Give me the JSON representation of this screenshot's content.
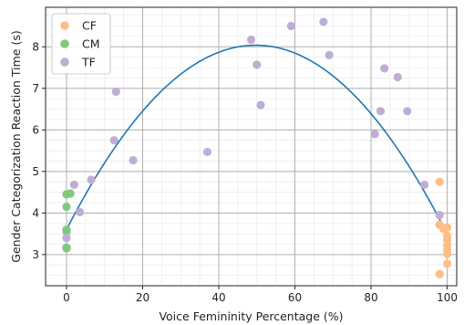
{
  "chart_data": {
    "type": "scatter",
    "title": "",
    "xlabel": "Voice Femininity Percentage (%)",
    "ylabel": "Gender Categorization Reaction Time (s)",
    "xlim": [
      -5.5,
      102.5
    ],
    "ylim": [
      2.25,
      8.95
    ],
    "xticks": [
      0,
      20,
      40,
      60,
      80,
      100
    ],
    "yticks": [
      3,
      4,
      5,
      6,
      7,
      8
    ],
    "grid": true,
    "legend_position": "top-left",
    "series": [
      {
        "name": "CF",
        "color": "#fdbf86",
        "points": [
          {
            "x": 98.0,
            "y": 4.75
          },
          {
            "x": 98.0,
            "y": 3.72
          },
          {
            "x": 99.0,
            "y": 3.62
          },
          {
            "x": 100.0,
            "y": 3.65
          },
          {
            "x": 100.0,
            "y": 3.45
          },
          {
            "x": 100.0,
            "y": 3.35
          },
          {
            "x": 100.0,
            "y": 3.22
          },
          {
            "x": 100.0,
            "y": 3.12
          },
          {
            "x": 100.0,
            "y": 3.02
          },
          {
            "x": 100.0,
            "y": 2.78
          },
          {
            "x": 98.0,
            "y": 2.53
          }
        ]
      },
      {
        "name": "CM",
        "color": "#7fc97f",
        "points": [
          {
            "x": 0.0,
            "y": 4.45
          },
          {
            "x": 1.0,
            "y": 4.47
          },
          {
            "x": 0.0,
            "y": 4.15
          },
          {
            "x": 0.0,
            "y": 3.6
          },
          {
            "x": 0.0,
            "y": 3.55
          },
          {
            "x": 0.0,
            "y": 3.17
          },
          {
            "x": 0.0,
            "y": 3.15
          }
        ]
      },
      {
        "name": "TF",
        "color": "#beaed4",
        "points": [
          {
            "x": 0.0,
            "y": 3.4
          },
          {
            "x": 2.0,
            "y": 4.68
          },
          {
            "x": 3.5,
            "y": 4.02
          },
          {
            "x": 6.5,
            "y": 4.8
          },
          {
            "x": 12.5,
            "y": 5.75
          },
          {
            "x": 13.0,
            "y": 6.92
          },
          {
            "x": 17.5,
            "y": 5.27
          },
          {
            "x": 37.0,
            "y": 5.47
          },
          {
            "x": 48.5,
            "y": 8.17
          },
          {
            "x": 50.0,
            "y": 7.57
          },
          {
            "x": 51.0,
            "y": 6.6
          },
          {
            "x": 59.0,
            "y": 8.5
          },
          {
            "x": 67.5,
            "y": 8.6
          },
          {
            "x": 69.0,
            "y": 7.8
          },
          {
            "x": 81.0,
            "y": 5.9
          },
          {
            "x": 82.5,
            "y": 6.45
          },
          {
            "x": 83.5,
            "y": 7.48
          },
          {
            "x": 87.0,
            "y": 7.27
          },
          {
            "x": 89.5,
            "y": 6.45
          },
          {
            "x": 94.0,
            "y": 4.68
          },
          {
            "x": 98.0,
            "y": 3.95
          }
        ]
      }
    ],
    "fit": {
      "type": "quadratic",
      "color": "#1f77b4",
      "x_range": [
        0,
        100
      ],
      "coefficients": {
        "a": -0.001796,
        "b": 0.17855,
        "c": 3.6
      }
    }
  }
}
